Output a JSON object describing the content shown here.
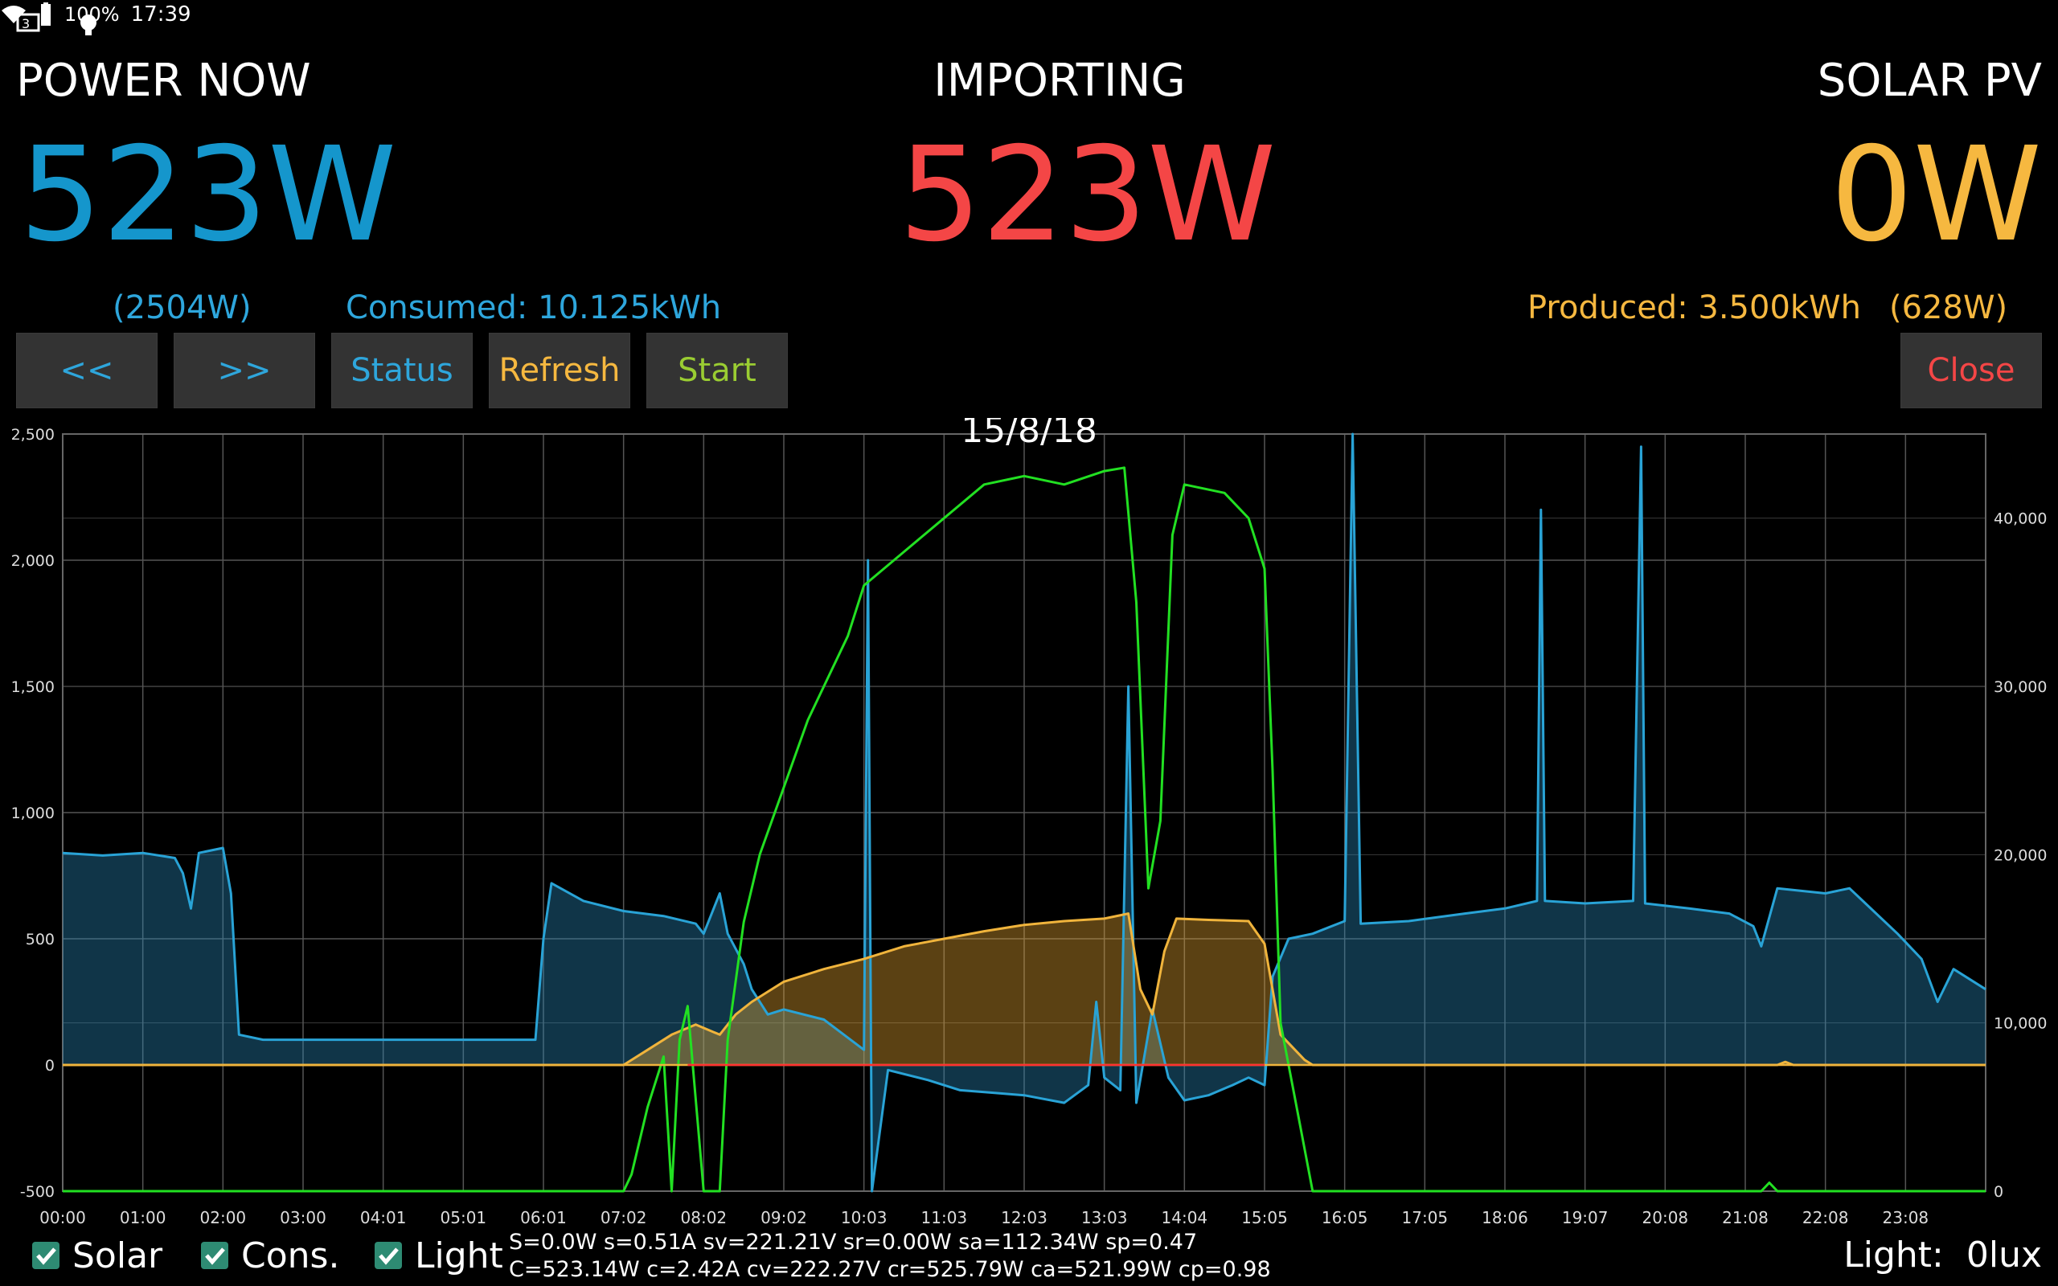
{
  "status_bar": {
    "battery": "100%",
    "time": "17:39"
  },
  "header": {
    "left": {
      "title": "POWER NOW",
      "value": "523W",
      "peak": "(2504W)"
    },
    "center": {
      "title": "IMPORTING",
      "value": "523W"
    },
    "right": {
      "title": "SOLAR PV",
      "value": "0W",
      "peak": "(628W)"
    },
    "consumed": "Consumed: 10.125kWh",
    "produced": "Produced: 3.500kWh"
  },
  "buttons": {
    "prev": "<<",
    "next": ">>",
    "status": "Status",
    "refresh": "Refresh",
    "start": "Start",
    "close": "Close"
  },
  "colors": {
    "consumption": "#29a3d6",
    "solar": "#f0b43c",
    "light": "#22e022",
    "import": "#ff4444",
    "zero_line": "#ff3030"
  },
  "chart_data": {
    "type": "area",
    "title": "15/8/18",
    "x_ticks": [
      "00:00",
      "01:00",
      "02:00",
      "03:00",
      "04:01",
      "05:01",
      "06:01",
      "07:02",
      "08:02",
      "09:02",
      "10:03",
      "11:03",
      "12:03",
      "13:03",
      "14:04",
      "15:05",
      "16:05",
      "17:05",
      "18:06",
      "19:07",
      "20:08",
      "21:08",
      "22:08",
      "23:08"
    ],
    "y_left_ticks": [
      "2,500",
      "2,000",
      "1,500",
      "1,000",
      "500",
      "0",
      "-500"
    ],
    "y_left_range": [
      -500,
      2500
    ],
    "y_right_ticks": [
      "40,000",
      "30,000",
      "20,000",
      "10,000",
      "0"
    ],
    "y_right_range": [
      0,
      45000
    ],
    "grid": true,
    "series": [
      {
        "name": "Solar",
        "axis": "left",
        "points": [
          [
            0,
            0
          ],
          [
            7.0,
            0
          ],
          [
            7.3,
            60
          ],
          [
            7.6,
            120
          ],
          [
            7.9,
            160
          ],
          [
            8.2,
            120
          ],
          [
            8.4,
            200
          ],
          [
            8.6,
            250
          ],
          [
            8.8,
            290
          ],
          [
            9.0,
            330
          ],
          [
            9.5,
            380
          ],
          [
            10.0,
            420
          ],
          [
            10.5,
            470
          ],
          [
            11.0,
            500
          ],
          [
            11.5,
            530
          ],
          [
            12.0,
            555
          ],
          [
            12.5,
            570
          ],
          [
            13.0,
            580
          ],
          [
            13.3,
            600
          ],
          [
            13.45,
            300
          ],
          [
            13.6,
            200
          ],
          [
            13.75,
            450
          ],
          [
            13.9,
            580
          ],
          [
            14.3,
            575
          ],
          [
            14.8,
            570
          ],
          [
            15.0,
            480
          ],
          [
            15.2,
            120
          ],
          [
            15.5,
            20
          ],
          [
            15.6,
            0
          ],
          [
            21.4,
            0
          ],
          [
            21.5,
            12
          ],
          [
            21.6,
            0
          ],
          [
            24,
            0
          ]
        ]
      },
      {
        "name": "Cons.",
        "axis": "left",
        "points": [
          [
            0,
            840
          ],
          [
            0.5,
            830
          ],
          [
            1.0,
            840
          ],
          [
            1.4,
            820
          ],
          [
            1.5,
            760
          ],
          [
            1.6,
            620
          ],
          [
            1.7,
            840
          ],
          [
            2.0,
            860
          ],
          [
            2.1,
            680
          ],
          [
            2.2,
            120
          ],
          [
            2.5,
            100
          ],
          [
            3.0,
            100
          ],
          [
            4.0,
            100
          ],
          [
            5.0,
            100
          ],
          [
            5.9,
            100
          ],
          [
            6.0,
            500
          ],
          [
            6.1,
            720
          ],
          [
            6.5,
            650
          ],
          [
            7.0,
            610
          ],
          [
            7.5,
            590
          ],
          [
            7.9,
            560
          ],
          [
            8.0,
            520
          ],
          [
            8.2,
            680
          ],
          [
            8.3,
            520
          ],
          [
            8.5,
            400
          ],
          [
            8.6,
            300
          ],
          [
            8.8,
            200
          ],
          [
            9.0,
            220
          ],
          [
            9.5,
            180
          ],
          [
            10.0,
            60
          ],
          [
            10.05,
            2000
          ],
          [
            10.1,
            -500
          ],
          [
            10.3,
            -20
          ],
          [
            10.8,
            -60
          ],
          [
            11.2,
            -100
          ],
          [
            11.6,
            -110
          ],
          [
            12.0,
            -120
          ],
          [
            12.5,
            -150
          ],
          [
            12.8,
            -80
          ],
          [
            12.9,
            250
          ],
          [
            13.0,
            -50
          ],
          [
            13.2,
            -100
          ],
          [
            13.3,
            1500
          ],
          [
            13.4,
            -150
          ],
          [
            13.6,
            220
          ],
          [
            13.8,
            -50
          ],
          [
            14.0,
            -140
          ],
          [
            14.3,
            -120
          ],
          [
            14.6,
            -80
          ],
          [
            14.8,
            -50
          ],
          [
            15.0,
            -80
          ],
          [
            15.1,
            350
          ],
          [
            15.3,
            500
          ],
          [
            15.6,
            520
          ],
          [
            16.0,
            570
          ],
          [
            16.1,
            2500
          ],
          [
            16.2,
            560
          ],
          [
            16.8,
            570
          ],
          [
            17.5,
            600
          ],
          [
            18.0,
            620
          ],
          [
            18.4,
            650
          ],
          [
            18.45,
            2200
          ],
          [
            18.5,
            650
          ],
          [
            19.0,
            640
          ],
          [
            19.6,
            650
          ],
          [
            19.7,
            2450
          ],
          [
            19.75,
            640
          ],
          [
            20.3,
            620
          ],
          [
            20.8,
            600
          ],
          [
            21.1,
            550
          ],
          [
            21.2,
            470
          ],
          [
            21.4,
            700
          ],
          [
            22.0,
            680
          ],
          [
            22.3,
            700
          ],
          [
            22.5,
            640
          ],
          [
            22.9,
            520
          ],
          [
            23.2,
            420
          ],
          [
            23.4,
            250
          ],
          [
            23.6,
            380
          ],
          [
            24,
            300
          ]
        ]
      },
      {
        "name": "Light",
        "axis": "right",
        "points": [
          [
            0,
            0
          ],
          [
            7.0,
            0
          ],
          [
            7.1,
            1000
          ],
          [
            7.3,
            5000
          ],
          [
            7.5,
            8000
          ],
          [
            7.6,
            0
          ],
          [
            7.7,
            9000
          ],
          [
            7.8,
            11000
          ],
          [
            8.0,
            0
          ],
          [
            8.2,
            0
          ],
          [
            8.3,
            9000
          ],
          [
            8.5,
            16000
          ],
          [
            8.7,
            20000
          ],
          [
            9.0,
            24000
          ],
          [
            9.3,
            28000
          ],
          [
            9.5,
            30000
          ],
          [
            9.8,
            33000
          ],
          [
            10.0,
            36000
          ],
          [
            10.5,
            38000
          ],
          [
            11.0,
            40000
          ],
          [
            11.5,
            42000
          ],
          [
            12.0,
            42500
          ],
          [
            12.5,
            42000
          ],
          [
            13.0,
            42800
          ],
          [
            13.25,
            43000
          ],
          [
            13.4,
            35000
          ],
          [
            13.55,
            18000
          ],
          [
            13.7,
            22000
          ],
          [
            13.85,
            39000
          ],
          [
            14.0,
            42000
          ],
          [
            14.5,
            41500
          ],
          [
            14.8,
            40000
          ],
          [
            15.0,
            37000
          ],
          [
            15.1,
            25000
          ],
          [
            15.2,
            10000
          ],
          [
            15.4,
            5000
          ],
          [
            15.6,
            0
          ],
          [
            21.2,
            0
          ],
          [
            21.3,
            500
          ],
          [
            21.4,
            0
          ],
          [
            24,
            0
          ]
        ]
      }
    ],
    "legend": [
      "Solar",
      "Cons.",
      "Light"
    ]
  },
  "footer": {
    "info_line1": "S=0.0W s=0.51A sv=221.21V sr=0.00W sa=112.34W sp=0.47",
    "info_line2": "C=523.14W c=2.42A cv=222.27V cr=525.79W ca=521.99W cp=0.98",
    "light_reading": "Light:  0lux"
  }
}
